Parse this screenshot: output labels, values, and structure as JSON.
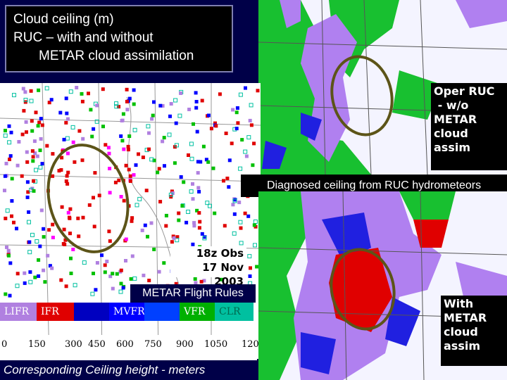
{
  "title": {
    "line1": "Cloud ceiling (m)",
    "line2": "RUC – with and without",
    "line3": "METAR cloud assimilation"
  },
  "panels": {
    "top_right_label": [
      "Oper RUC",
      " - w/o",
      "METAR",
      "cloud",
      "assim"
    ],
    "diagnosed_label": "Diagnosed ceiling from RUC hydrometeors",
    "bottom_right_label": [
      "With",
      "METAR",
      "cloud",
      "assim"
    ],
    "obs_label": [
      "18z Obs",
      "17 Nov 2003"
    ]
  },
  "legend": {
    "title": "METAR Flight Rules",
    "categories": [
      {
        "label": "LIFR",
        "color": "#b080e0"
      },
      {
        "label": "IFR",
        "color": "#e00000"
      },
      {
        "label": "",
        "color": "#0000c0"
      },
      {
        "label": "MVFR",
        "color": "#0000ff"
      },
      {
        "label": "",
        "color": "#0040ff"
      },
      {
        "label": "",
        "color": "#0060ff"
      },
      {
        "label": "VFR",
        "color": "#00b000"
      },
      {
        "label": "CLR",
        "color": "#00c0a0"
      }
    ],
    "scale_ticks": [
      "0",
      "150",
      "300",
      "450",
      "600",
      "750",
      "900",
      "1050",
      "120"
    ],
    "caption": "Corresponding Ceiling height - meters"
  },
  "colors": {
    "background": "#000048",
    "lifr": "#b080e0",
    "ifr": "#e00000",
    "mvfr": "#0000ff",
    "vfr": "#00c000",
    "clr": "#00c0a0",
    "ellipse": "#5c5418"
  }
}
